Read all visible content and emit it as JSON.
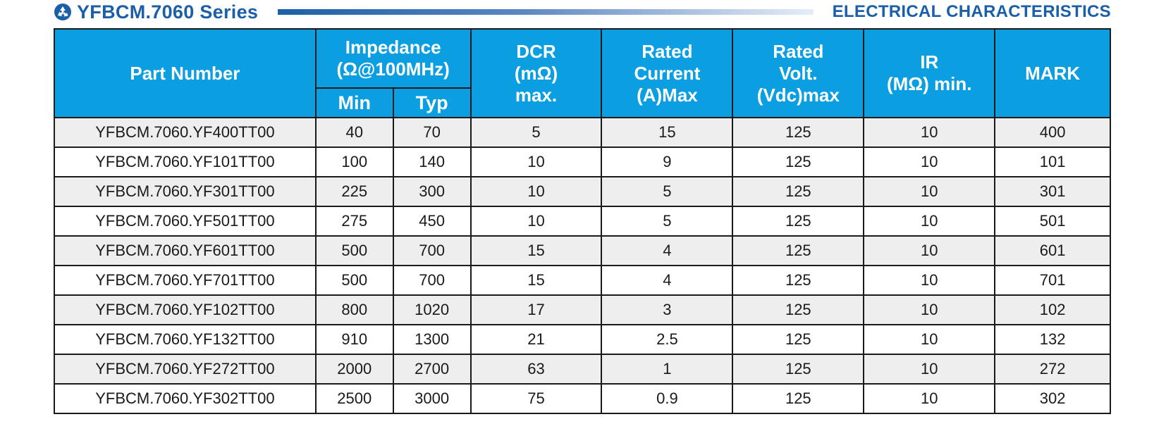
{
  "header": {
    "series": "YFBCM.7060 Series",
    "section": "ELECTRICAL CHARACTERISTICS",
    "icon": "recycle-icon",
    "accent": "#1b5fa8"
  },
  "table": {
    "header_color": "#0b9fe2",
    "columns": {
      "part_number": "Part Number",
      "impedance_l1": "Impedance",
      "impedance_l2": "(Ω@100MHz)",
      "min": "Min",
      "typ": "Typ",
      "dcr_l1": "DCR",
      "dcr_l2": "(mΩ)",
      "dcr_l3": "max.",
      "current_l1": "Rated",
      "current_l2": "Current",
      "current_l3": "(A)Max",
      "volt_l1": "Rated",
      "volt_l2": "Volt.",
      "volt_l3": "(Vdc)max",
      "ir_l1": "IR",
      "ir_l2": "(MΩ) min.",
      "mark": "MARK"
    },
    "rows": [
      {
        "part": "YFBCM.7060.YF400TT00",
        "min": "40",
        "typ": "70",
        "dcr": "5",
        "current": "15",
        "volt": "125",
        "ir": "10",
        "mark": "400"
      },
      {
        "part": "YFBCM.7060.YF101TT00",
        "min": "100",
        "typ": "140",
        "dcr": "10",
        "current": "9",
        "volt": "125",
        "ir": "10",
        "mark": "101"
      },
      {
        "part": "YFBCM.7060.YF301TT00",
        "min": "225",
        "typ": "300",
        "dcr": "10",
        "current": "5",
        "volt": "125",
        "ir": "10",
        "mark": "301"
      },
      {
        "part": "YFBCM.7060.YF501TT00",
        "min": "275",
        "typ": "450",
        "dcr": "10",
        "current": "5",
        "volt": "125",
        "ir": "10",
        "mark": "501"
      },
      {
        "part": "YFBCM.7060.YF601TT00",
        "min": "500",
        "typ": "700",
        "dcr": "15",
        "current": "4",
        "volt": "125",
        "ir": "10",
        "mark": "601"
      },
      {
        "part": "YFBCM.7060.YF701TT00",
        "min": "500",
        "typ": "700",
        "dcr": "15",
        "current": "4",
        "volt": "125",
        "ir": "10",
        "mark": "701"
      },
      {
        "part": "YFBCM.7060.YF102TT00",
        "min": "800",
        "typ": "1020",
        "dcr": "17",
        "current": "3",
        "volt": "125",
        "ir": "10",
        "mark": "102"
      },
      {
        "part": "YFBCM.7060.YF132TT00",
        "min": "910",
        "typ": "1300",
        "dcr": "21",
        "current": "2.5",
        "volt": "125",
        "ir": "10",
        "mark": "132"
      },
      {
        "part": "YFBCM.7060.YF272TT00",
        "min": "2000",
        "typ": "2700",
        "dcr": "63",
        "current": "1",
        "volt": "125",
        "ir": "10",
        "mark": "272"
      },
      {
        "part": "YFBCM.7060.YF302TT00",
        "min": "2500",
        "typ": "3000",
        "dcr": "75",
        "current": "0.9",
        "volt": "125",
        "ir": "10",
        "mark": "302"
      }
    ]
  }
}
